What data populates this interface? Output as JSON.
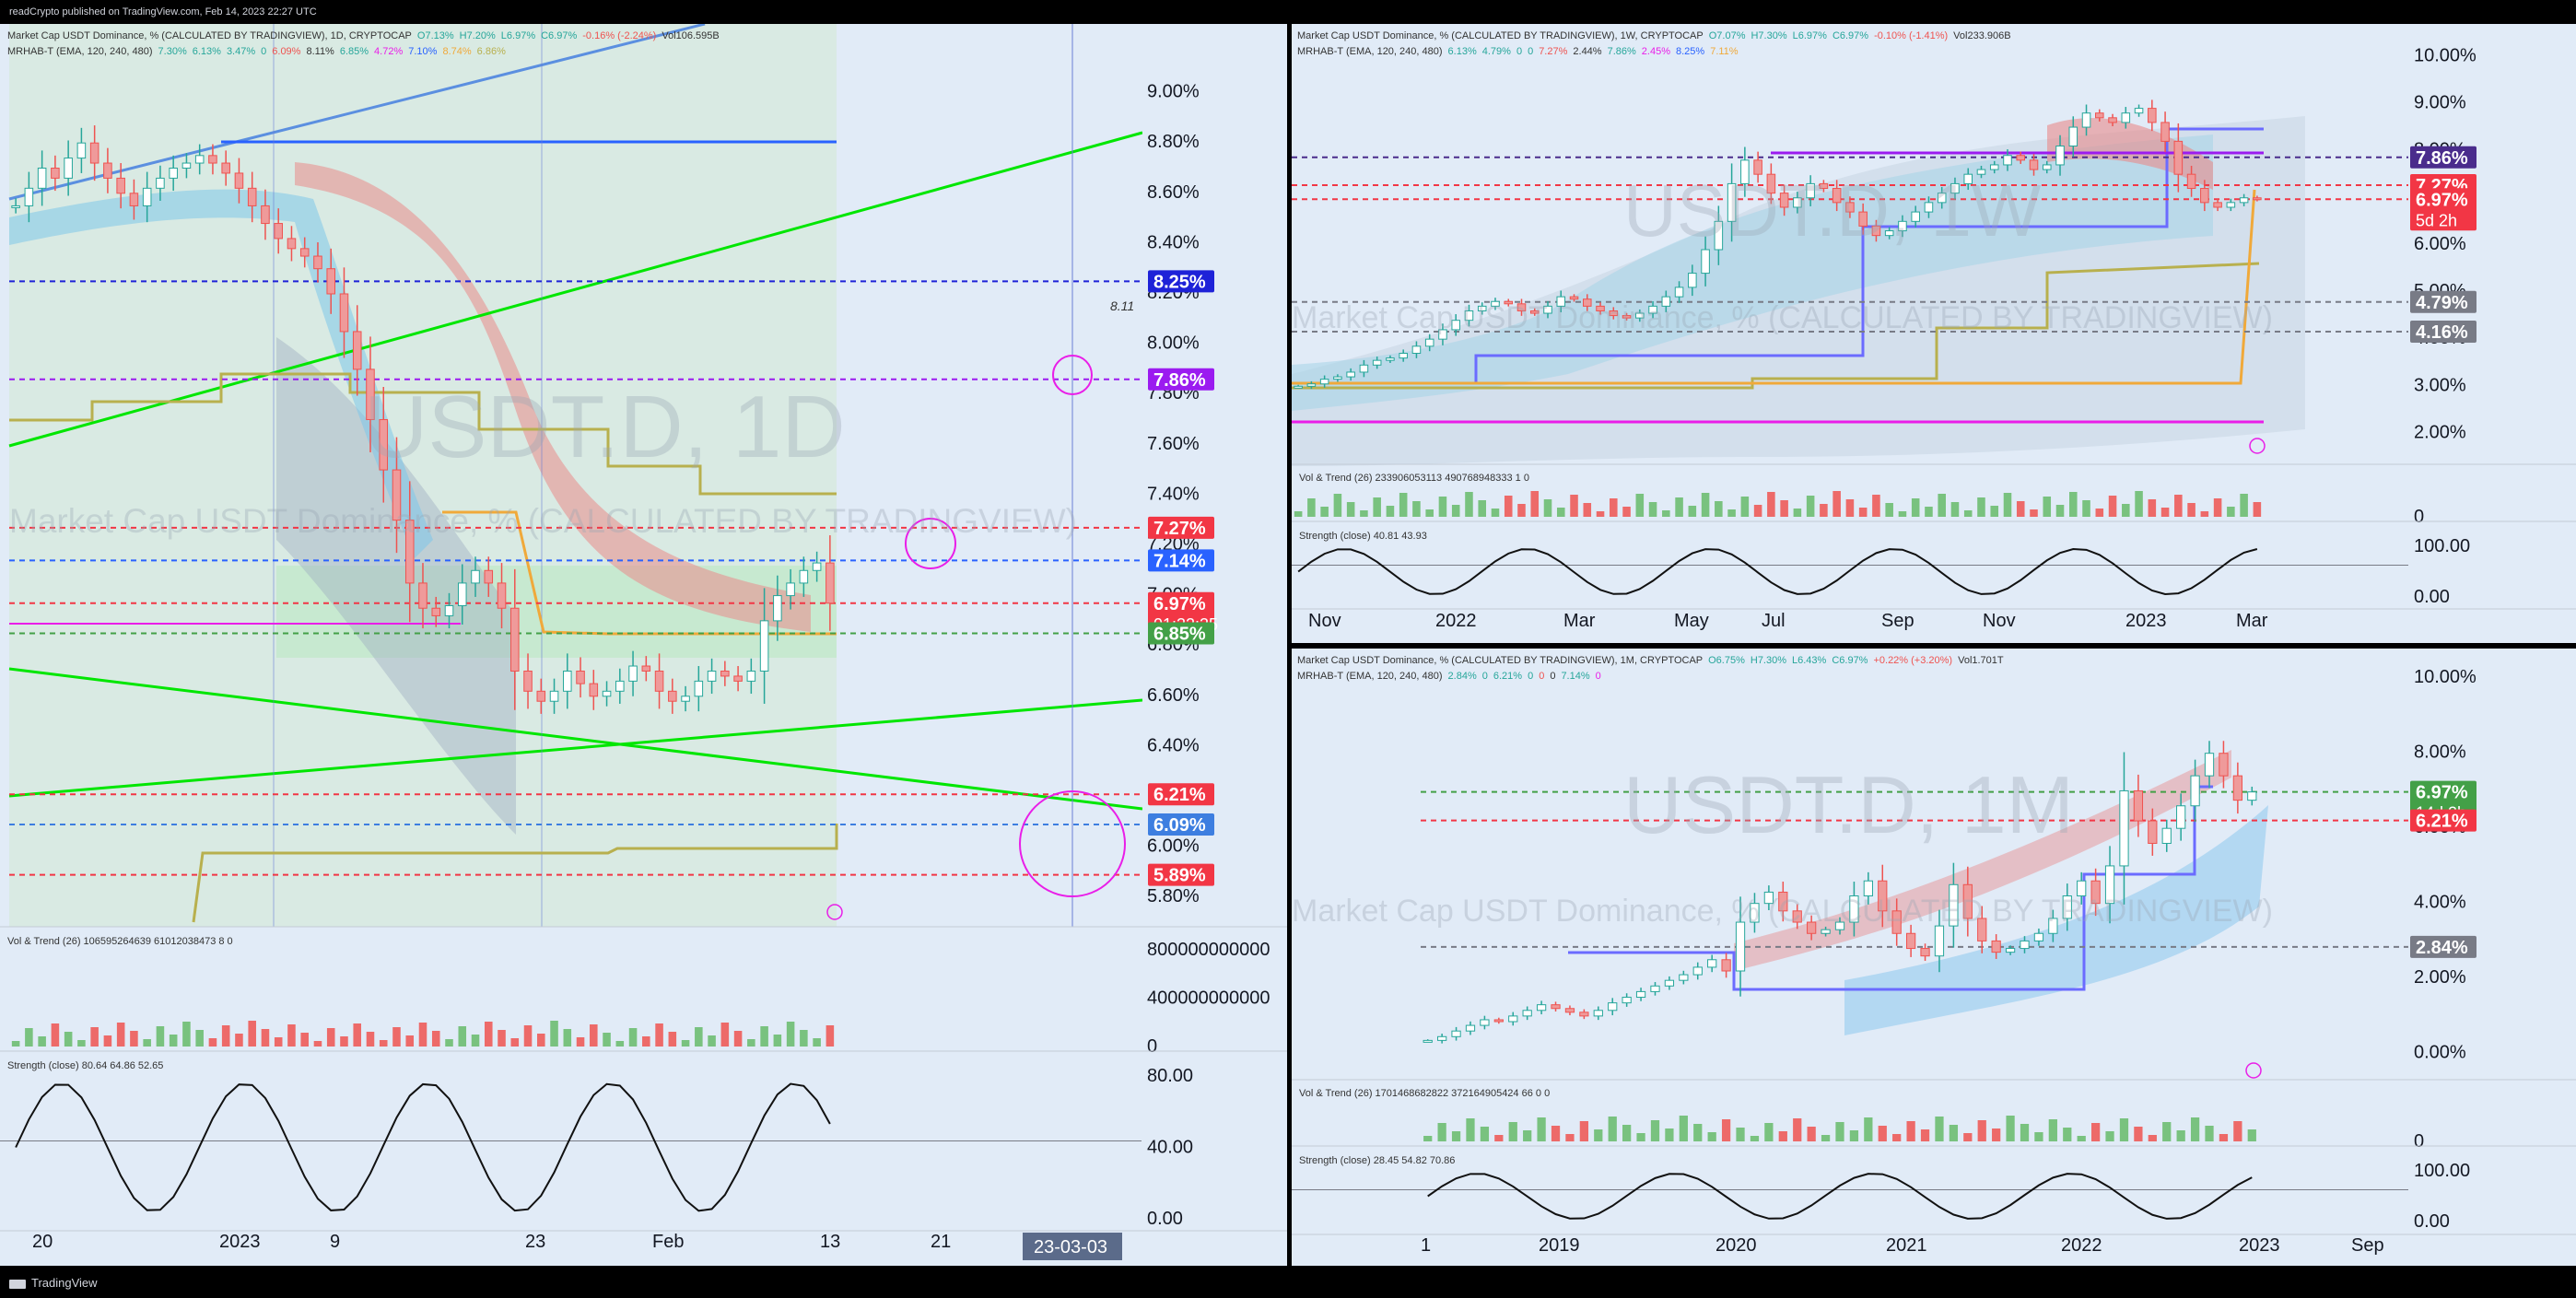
{
  "header": {
    "published": "readCrypto published on TradingView.com, Feb 14, 2023 22:27 UTC"
  },
  "footer": {
    "brand": "TradingView"
  },
  "colors": {
    "bg": "#e1ebf7",
    "up": "#26a69a",
    "down": "#ef5350",
    "green_line": "#00e600",
    "blue_line": "#2962ff",
    "magenta": "#e91ee8",
    "olive": "#b5ab52",
    "orange": "#f7a93b"
  },
  "chart_data": [
    {
      "id": "daily",
      "type": "candlestick",
      "title": "Market Cap USDT Dominance, % (CALCULATED BY TRADINGVIEW), 1D, CRYPTOCAP",
      "watermark": "USDT.D, 1D",
      "watermark_sub": "Market Cap USDT Dominance, % (CALCULATED BY TRADINGVIEW)",
      "legend_main": [
        "Market Cap USDT Dominance, % (CALCULATED BY TRADINGVIEW), 1D, CRYPTOCAP",
        "O7.13%",
        "H7.20%",
        "L6.97%",
        "C6.97%",
        "-0.16% (-2.24%)",
        "Vol106.595B"
      ],
      "legend_mrhab": [
        "MRHAB-T (EMA, 120, 240, 480)",
        "7.30%",
        "6.13%",
        "3.47%",
        "0",
        "6.09%",
        "8.11%",
        "6.85%",
        "4.72%",
        "7.10%",
        "8.74%",
        "6.86%"
      ],
      "ylim": [
        5.72,
        9.2
      ],
      "yticks": [
        "9.00%",
        "8.80%",
        "8.60%",
        "8.40%",
        "8.20%",
        "8.00%",
        "7.80%",
        "7.60%",
        "7.40%",
        "7.20%",
        "7.00%",
        "6.80%",
        "6.60%",
        "6.40%",
        "6.20%",
        "6.00%",
        "5.80%"
      ],
      "ytick_values": [
        9.0,
        8.8,
        8.6,
        8.4,
        8.2,
        8.0,
        7.8,
        7.6,
        7.4,
        7.2,
        7.0,
        6.8,
        6.6,
        6.4,
        6.2,
        6.0,
        5.8
      ],
      "price_tags": [
        {
          "label": "8.25%",
          "value": 8.25,
          "color": "#1e22d8"
        },
        {
          "label": "7.86%",
          "value": 7.86,
          "color": "#9b1bf0"
        },
        {
          "label": "7.27%",
          "value": 7.27,
          "color": "#f23645"
        },
        {
          "label": "7.14%",
          "value": 7.14,
          "color": "#2962ff"
        },
        {
          "label": "6.97%",
          "value": 6.97,
          "color": "#f23645",
          "sub": "01:32:35"
        },
        {
          "label": "6.85%",
          "value": 6.85,
          "color": "#43a047"
        },
        {
          "label": "6.21%",
          "value": 6.21,
          "color": "#f23645"
        },
        {
          "label": "6.09%",
          "value": 6.09,
          "color": "#3d7ee0"
        },
        {
          "label": "5.89%",
          "value": 5.89,
          "color": "#f23645"
        }
      ],
      "annotation": "8.11",
      "xticks": [
        "20",
        "2023",
        "9",
        "23",
        "Feb",
        "13",
        "21"
      ],
      "x_date_tag": "23-03-03",
      "closes": [
        8.55,
        8.62,
        8.7,
        8.66,
        8.74,
        8.8,
        8.72,
        8.66,
        8.6,
        8.55,
        8.62,
        8.66,
        8.7,
        8.72,
        8.75,
        8.72,
        8.68,
        8.62,
        8.55,
        8.48,
        8.42,
        8.38,
        8.35,
        8.3,
        8.2,
        8.05,
        7.9,
        7.7,
        7.5,
        7.3,
        7.05,
        6.95,
        6.92,
        6.96,
        7.05,
        7.1,
        7.05,
        6.95,
        6.7,
        6.62,
        6.58,
        6.62,
        6.7,
        6.65,
        6.6,
        6.62,
        6.66,
        6.72,
        6.7,
        6.62,
        6.58,
        6.6,
        6.66,
        6.7,
        6.68,
        6.66,
        6.7,
        6.9,
        7.0,
        7.05,
        7.1,
        7.13,
        6.97
      ],
      "indicators": [
        {
          "name": "Vol & Trend",
          "legend": [
            "Vol & Trend (26)",
            "106595264639",
            "61012038473 8",
            "0"
          ],
          "yticks": [
            "800000000000",
            "400000000000",
            "0"
          ]
        },
        {
          "name": "Strength",
          "legend": [
            "Strength (close)",
            "80.64",
            "64.86",
            "52.65"
          ],
          "yticks": [
            "80.00",
            "40.00",
            "0.00"
          ]
        }
      ]
    },
    {
      "id": "weekly",
      "type": "candlestick",
      "title": "Market Cap USDT Dominance, % (CALCULATED BY TRADINGVIEW), 1W, CRYPTOCAP",
      "watermark": "USDT.D, 1W",
      "watermark_sub": "Market Cap USDT Dominance, % (CALCULATED BY TRADINGVIEW)",
      "legend_main": [
        "Market Cap USDT Dominance, % (CALCULATED BY TRADINGVIEW), 1W, CRYPTOCAP",
        "O7.07%",
        "H7.30%",
        "L6.97%",
        "C6.97%",
        "-0.10% (-1.41%)",
        "Vol233.906B"
      ],
      "legend_mrhab": [
        "MRHAB-T (EMA, 120, 240, 480)",
        "6.13%",
        "4.79%",
        "0",
        "0",
        "7.27%",
        "2.44%",
        "7.86%",
        "2.45%",
        "8.25%",
        "7.11%"
      ],
      "ylim": [
        1.5,
        10.3
      ],
      "yticks": [
        "10.00%",
        "9.00%",
        "8.00%",
        "7.00%",
        "6.00%",
        "5.00%",
        "4.00%",
        "3.00%",
        "2.00%"
      ],
      "ytick_values": [
        10,
        9,
        8,
        7,
        6,
        5,
        4,
        3,
        2
      ],
      "price_tags": [
        {
          "label": "7.86%",
          "value": 7.86,
          "color": "#4a2c8c"
        },
        {
          "label": "7.27%",
          "value": 7.27,
          "color": "#f23645"
        },
        {
          "label": "6.97%",
          "value": 6.97,
          "color": "#f23645",
          "sub": "5d 2h"
        },
        {
          "label": "4.79%",
          "value": 4.79,
          "color": "#787b86"
        },
        {
          "label": "4.16%",
          "value": 4.16,
          "color": "#787b86"
        }
      ],
      "xticks": [
        "Nov",
        "2022",
        "Mar",
        "May",
        "Jul",
        "Sep",
        "Nov",
        "2023",
        "Mar"
      ],
      "closes": [
        3.0,
        3.05,
        3.15,
        3.2,
        3.3,
        3.45,
        3.55,
        3.6,
        3.7,
        3.85,
        4.0,
        4.2,
        4.4,
        4.6,
        4.7,
        4.8,
        4.75,
        4.6,
        4.55,
        4.7,
        4.9,
        4.85,
        4.7,
        4.6,
        4.5,
        4.45,
        4.55,
        4.7,
        4.9,
        5.1,
        5.4,
        5.9,
        6.5,
        7.3,
        7.8,
        7.5,
        7.1,
        6.8,
        7.0,
        7.3,
        7.2,
        6.9,
        6.7,
        6.4,
        6.2,
        6.3,
        6.5,
        6.7,
        6.9,
        7.1,
        7.3,
        7.5,
        7.6,
        7.7,
        7.9,
        7.8,
        7.6,
        7.7,
        8.1,
        8.5,
        8.8,
        8.7,
        8.6,
        8.8,
        8.9,
        8.6,
        8.2,
        7.5,
        7.2,
        6.9,
        6.8,
        6.9,
        7.0,
        6.97
      ],
      "indicators": [
        {
          "name": "Vol & Trend",
          "legend": [
            "Vol & Trend (26)",
            "233906053113",
            "490768948333",
            "1",
            "0"
          ],
          "yticks": [
            "0"
          ]
        },
        {
          "name": "Strength",
          "legend": [
            "Strength (close)",
            "40.81",
            "43.93"
          ],
          "yticks": [
            "100.00",
            "0.00"
          ]
        }
      ]
    },
    {
      "id": "monthly",
      "type": "candlestick",
      "title": "Market Cap USDT Dominance, % (CALCULATED BY TRADINGVIEW), 1M, CRYPTOCAP",
      "watermark": "USDT.D, 1M",
      "watermark_sub": "Market Cap USDT Dominance, % (CALCULATED BY TRADINGVIEW)",
      "legend_main": [
        "Market Cap USDT Dominance, % (CALCULATED BY TRADINGVIEW), 1M, CRYPTOCAP",
        "O6.75%",
        "H7.30%",
        "L6.43%",
        "C6.97%",
        "+0.22% (+3.20%)",
        "Vol1.701T"
      ],
      "legend_mrhab": [
        "MRHAB-T (EMA, 120, 240, 480)",
        "2.84%",
        "0",
        "6.21%",
        "0",
        "0",
        "0",
        "7.14%",
        "0"
      ],
      "ylim": [
        -0.5,
        10.3
      ],
      "yticks": [
        "10.00%",
        "8.00%",
        "6.00%",
        "4.00%",
        "2.00%",
        "0.00%"
      ],
      "ytick_values": [
        10,
        8,
        6,
        4,
        2,
        0
      ],
      "price_tags": [
        {
          "label": "6.97%",
          "value": 6.97,
          "color": "#43a047",
          "sub": "14d 2h"
        },
        {
          "label": "6.21%",
          "value": 6.21,
          "color": "#f23645"
        },
        {
          "label": "2.84%",
          "value": 2.84,
          "color": "#787b86"
        }
      ],
      "xticks": [
        "1",
        "2019",
        "2020",
        "2021",
        "2022",
        "2023",
        "Sep"
      ],
      "closes": [
        0.35,
        0.45,
        0.6,
        0.75,
        0.9,
        0.85,
        1.0,
        1.15,
        1.3,
        1.2,
        1.1,
        1.0,
        1.15,
        1.35,
        1.5,
        1.65,
        1.8,
        1.95,
        2.1,
        2.3,
        2.5,
        2.2,
        3.5,
        4.0,
        4.3,
        3.8,
        3.5,
        3.2,
        3.3,
        3.5,
        4.2,
        4.6,
        3.8,
        3.2,
        2.8,
        2.6,
        3.4,
        4.5,
        3.6,
        3.0,
        2.7,
        2.8,
        3.0,
        3.2,
        3.6,
        4.2,
        4.6,
        4.0,
        5.0,
        7.0,
        6.2,
        5.6,
        6.0,
        6.6,
        7.4,
        8.0,
        7.4,
        6.75,
        6.97
      ],
      "indicators": [
        {
          "name": "Vol & Trend",
          "legend": [
            "Vol & Trend (26)",
            "1701468682822",
            "372164905424 66",
            "0",
            "0"
          ],
          "yticks": [
            "0"
          ]
        },
        {
          "name": "Strength",
          "legend": [
            "Strength (close)",
            "28.45",
            "54.82",
            "70.86"
          ],
          "yticks": [
            "100.00",
            "0.00"
          ]
        }
      ]
    }
  ]
}
